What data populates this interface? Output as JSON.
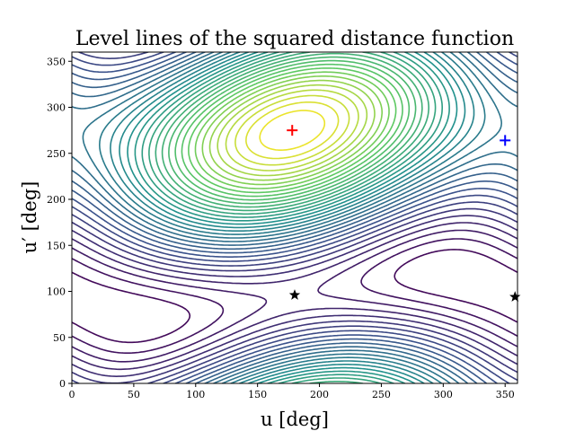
{
  "chart_data": {
    "type": "contour",
    "title": "Level lines of the squared distance function",
    "xlabel": "u [deg]",
    "ylabel": "u′ [deg]",
    "xlim": [
      0,
      360
    ],
    "ylim": [
      0,
      360
    ],
    "xticks": [
      0,
      50,
      100,
      150,
      200,
      250,
      300,
      350
    ],
    "yticks": [
      0,
      50,
      100,
      150,
      200,
      250,
      300,
      350
    ],
    "colormap": [
      "#440154",
      "#3b528b",
      "#21918c",
      "#5ec962",
      "#fde725"
    ],
    "grid": false,
    "markers": [
      {
        "kind": "plus",
        "color": "#ff0000",
        "x": 178,
        "y": 275
      },
      {
        "kind": "plus",
        "color": "#0000ff",
        "x": 350,
        "y": 264
      },
      {
        "kind": "star",
        "color": "#000000",
        "x": 180,
        "y": 96
      },
      {
        "kind": "star",
        "color": "#000000",
        "x": 358,
        "y": 94
      }
    ]
  }
}
